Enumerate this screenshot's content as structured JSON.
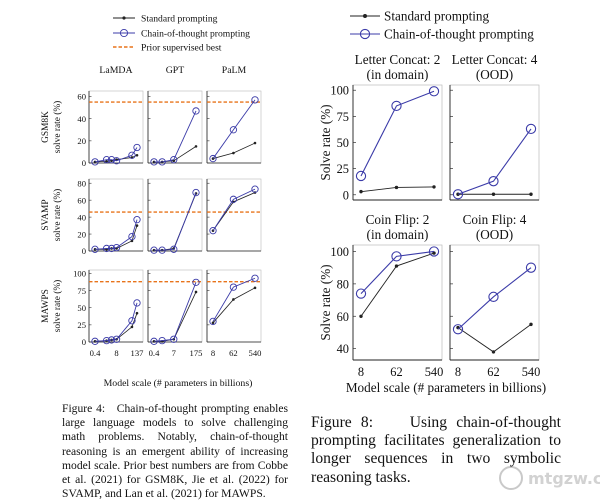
{
  "figure4": {
    "legend": {
      "standard": "Standard prompting",
      "cot": "Chain-of-thought prompting",
      "prior": "Prior supervised best"
    },
    "columns": [
      "LaMDA",
      "GPT",
      "PaLM"
    ],
    "xlabel": "Model scale (# parameters in billions)",
    "caption": {
      "label": "Figure 4:",
      "text": "Chain-of-thought prompting enables large language models to solve challenging math problems. Notably, chain-of-thought reasoning is an emergent ability of increasing model scale. Prior best numbers are from Cobbe et al. (2021) for GSM8K, Jie et al. (2022) for SVAMP, and Lan et al. (2021) for MAWPS."
    }
  },
  "figure8": {
    "legend": {
      "standard": "Standard prompting",
      "cot": "Chain-of-thought prompting"
    },
    "ylabel": "Solve rate (%)",
    "xlabel": "Model scale (# parameters in billions)",
    "caption": {
      "label": "Figure 8:",
      "text": "Using chain-of-thought prompting facilitates generalization to longer sequences in two symbolic reasoning tasks."
    }
  },
  "watermark": "mtgzw.com",
  "chart_data": [
    {
      "id": "fig4",
      "type": "line",
      "colors": {
        "standard": "#222222",
        "cot": "#3b3ba8",
        "prior": "#e8731a"
      },
      "rows": [
        {
          "dataset": "GSM8K",
          "ylabel": "solve rate (%)",
          "yticks": [
            0,
            20,
            40,
            60
          ],
          "ylim": [
            0,
            65
          ],
          "prior": 55
        },
        {
          "dataset": "SVAMP",
          "ylabel": "solve rate (%)",
          "yticks": [
            0,
            20,
            40,
            60,
            80
          ],
          "ylim": [
            0,
            85
          ],
          "prior": 46
        },
        {
          "dataset": "MAWPS",
          "ylabel": "solve rate (%)",
          "yticks": [
            0,
            25,
            50,
            75,
            100
          ],
          "ylim": [
            0,
            105
          ],
          "prior": 88
        }
      ],
      "panels": [
        {
          "row": 0,
          "col": 0,
          "x": [
            "0.4",
            "8",
            "137"
          ],
          "xpos": [
            0.4,
            2,
            4,
            8,
            68,
            137
          ],
          "standard": [
            1,
            1.5,
            2,
            3,
            5,
            7
          ],
          "cot": [
            1,
            3,
            3,
            2,
            7,
            14
          ]
        },
        {
          "row": 0,
          "col": 1,
          "x": [
            "0.4",
            "7",
            "175"
          ],
          "xpos": [
            0.4,
            1.3,
            7,
            175
          ],
          "standard": [
            1,
            1,
            2,
            15
          ],
          "cot": [
            1,
            1,
            3,
            47
          ]
        },
        {
          "row": 0,
          "col": 2,
          "x": [
            "8",
            "62",
            "540"
          ],
          "xpos": [
            8,
            62,
            540
          ],
          "standard": [
            4,
            9,
            18
          ],
          "cot": [
            4,
            30,
            57
          ]
        },
        {
          "row": 1,
          "col": 0,
          "x": [
            "0.4",
            "8",
            "137"
          ],
          "xpos": [
            0.4,
            2,
            4,
            8,
            68,
            137
          ],
          "standard": [
            2,
            2,
            3,
            3,
            12,
            30
          ],
          "cot": [
            2,
            3,
            3,
            4,
            17,
            37
          ]
        },
        {
          "row": 1,
          "col": 1,
          "x": [
            "0.4",
            "7",
            "175"
          ],
          "xpos": [
            0.4,
            1.3,
            7,
            175
          ],
          "standard": [
            1,
            1,
            3,
            68
          ],
          "cot": [
            1,
            1,
            2,
            69
          ]
        },
        {
          "row": 1,
          "col": 2,
          "x": [
            "8",
            "62",
            "540"
          ],
          "xpos": [
            8,
            62,
            540
          ],
          "standard": [
            24,
            58,
            69
          ],
          "cot": [
            24,
            61,
            73
          ]
        },
        {
          "row": 2,
          "col": 0,
          "x": [
            "0.4",
            "8",
            "137"
          ],
          "xpos": [
            0.4,
            2,
            4,
            8,
            68,
            137
          ],
          "standard": [
            1,
            2,
            3,
            4,
            22,
            42
          ],
          "cot": [
            1,
            2,
            3,
            4,
            31,
            57
          ]
        },
        {
          "row": 2,
          "col": 1,
          "x": [
            "0.4",
            "7",
            "175"
          ],
          "xpos": [
            0.4,
            1.3,
            7,
            175
          ],
          "standard": [
            1,
            1,
            4,
            73
          ],
          "cot": [
            1,
            2,
            4,
            87
          ]
        },
        {
          "row": 2,
          "col": 2,
          "x": [
            "8",
            "62",
            "540"
          ],
          "xpos": [
            8,
            62,
            540
          ],
          "standard": [
            28,
            62,
            79
          ],
          "cot": [
            30,
            80,
            93
          ]
        }
      ]
    },
    {
      "id": "fig8",
      "type": "line",
      "x": [
        "8",
        "62",
        "540"
      ],
      "colors": {
        "standard": "#222222",
        "cot": "#3b3ba8"
      },
      "rows": [
        {
          "yticks": [
            0,
            25,
            50,
            75,
            100
          ],
          "ylim": [
            -5,
            105
          ]
        },
        {
          "yticks": [
            40,
            60,
            80,
            100
          ],
          "ylim": [
            33,
            104
          ]
        }
      ],
      "panels": [
        {
          "title": [
            "Letter Concat: 2",
            "(in domain)"
          ],
          "row": 0,
          "col": 0,
          "standard": [
            3,
            7,
            7.5
          ],
          "cot": [
            18,
            85,
            99
          ]
        },
        {
          "title": [
            "Letter Concat: 4",
            "(OOD)"
          ],
          "row": 0,
          "col": 1,
          "standard": [
            0.5,
            0.5,
            0.5
          ],
          "cot": [
            0.5,
            13,
            63
          ]
        },
        {
          "title": [
            "Coin Flip: 2",
            "(in domain)"
          ],
          "row": 1,
          "col": 0,
          "standard": [
            60,
            91,
            99
          ],
          "cot": [
            74,
            97,
            100
          ]
        },
        {
          "title": [
            "Coin Flip: 4",
            "(OOD)"
          ],
          "row": 1,
          "col": 1,
          "standard": [
            53,
            38,
            55
          ],
          "cot": [
            52,
            72,
            90
          ]
        }
      ]
    }
  ]
}
